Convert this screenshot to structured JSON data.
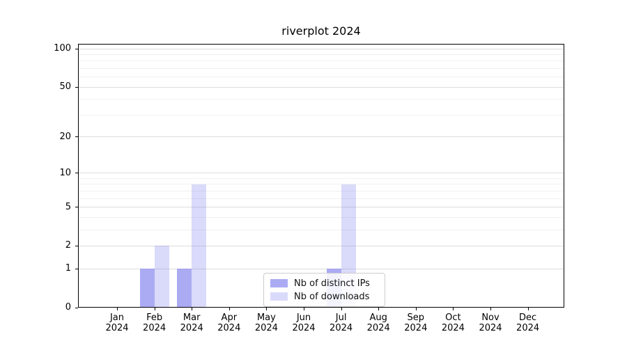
{
  "chart_data": {
    "type": "bar",
    "title": "riverplot 2024",
    "yscale": "symlog-log1p",
    "grid": true,
    "legend_position": "lower-center",
    "categories": [
      "Jan 2024",
      "Feb 2024",
      "Mar 2024",
      "Apr 2024",
      "May 2024",
      "Jun 2024",
      "Jul 2024",
      "Aug 2024",
      "Sep 2024",
      "Oct 2024",
      "Nov 2024",
      "Dec 2024"
    ],
    "x_ticks": [
      {
        "month": "Jan",
        "year": "2024"
      },
      {
        "month": "Feb",
        "year": "2024"
      },
      {
        "month": "Mar",
        "year": "2024"
      },
      {
        "month": "Apr",
        "year": "2024"
      },
      {
        "month": "May",
        "year": "2024"
      },
      {
        "month": "Jun",
        "year": "2024"
      },
      {
        "month": "Jul",
        "year": "2024"
      },
      {
        "month": "Aug",
        "year": "2024"
      },
      {
        "month": "Sep",
        "year": "2024"
      },
      {
        "month": "Oct",
        "year": "2024"
      },
      {
        "month": "Nov",
        "year": "2024"
      },
      {
        "month": "Dec",
        "year": "2024"
      }
    ],
    "series": [
      {
        "name": "Nb of distinct IPs",
        "color": "#7777ee",
        "alpha": 0.62,
        "values": [
          0,
          1,
          1,
          0,
          0,
          0,
          1,
          0,
          0,
          0,
          0,
          0
        ]
      },
      {
        "name": "Nb of downloads",
        "color": "#7777ee",
        "alpha": 0.27,
        "values": [
          0,
          2,
          8,
          0,
          0,
          0,
          8,
          0,
          0,
          0,
          0,
          0
        ]
      }
    ],
    "y_major_ticks": [
      0,
      1,
      2,
      5,
      10,
      20,
      50,
      100
    ],
    "y_minor_ticks": [
      3,
      4,
      6,
      7,
      8,
      9,
      30,
      40,
      60,
      70,
      80,
      90
    ],
    "ylim": [
      0,
      110
    ],
    "colors": {
      "major_grid": "#dcdcdc",
      "minor_grid": "#f0f0f0",
      "axis": "#000000"
    }
  }
}
